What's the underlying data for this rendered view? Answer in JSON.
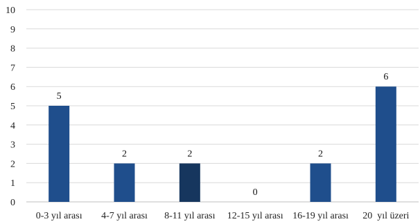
{
  "chart_data": {
    "type": "bar",
    "categories": [
      "0-3 yıl arası",
      "4-7 yıl arası",
      "8-11 yıl arası",
      "12-15 yıl arası",
      "16-19 yıl arası",
      "20  yıl üzeri"
    ],
    "values": [
      5,
      2,
      2,
      0,
      2,
      6
    ],
    "data_labels": [
      "5",
      "2",
      "2",
      "0",
      "2",
      "6"
    ],
    "title": "",
    "xlabel": "",
    "ylabel": "",
    "ylim": [
      0,
      10
    ],
    "y_ticks": [
      "0",
      "1",
      "2",
      "3",
      "4",
      "5",
      "6",
      "7",
      "8",
      "9",
      "10"
    ],
    "grid": true,
    "legend": "none",
    "colors": {
      "bar": "#1f4e8c",
      "bar_highlight": "#16365e",
      "grid": "#d9d9d9",
      "axis": "#bfbfbf",
      "text": "#222222"
    },
    "highlight_index": 2
  }
}
